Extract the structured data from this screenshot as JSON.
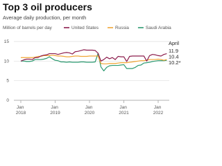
{
  "chart_data": {
    "type": "line",
    "title": "Top 3 oil producers",
    "subtitle": "Average daily production, per month",
    "y_label": "Million of barrels per day",
    "annotation": "April",
    "categories": [
      "Jan 2018",
      null,
      null,
      null,
      null,
      null,
      null,
      null,
      null,
      null,
      null,
      null,
      "Jan 2019",
      null,
      null,
      null,
      null,
      null,
      null,
      null,
      null,
      null,
      null,
      null,
      "Jan 2020",
      null,
      null,
      null,
      null,
      null,
      null,
      null,
      null,
      null,
      null,
      null,
      "Jan 2021",
      null,
      null,
      null,
      null,
      null,
      null,
      null,
      null,
      null,
      null,
      null,
      "Jan 2022",
      null,
      null,
      null
    ],
    "ylim": [
      0,
      15
    ],
    "yticks": [
      0,
      5,
      10,
      15
    ],
    "grid": true,
    "series": [
      {
        "name": "United States",
        "color": "#8c1c4c",
        "last_label": "11.9",
        "values": [
          10.0,
          10.3,
          10.5,
          10.5,
          10.4,
          10.9,
          10.9,
          11.3,
          11.5,
          11.6,
          11.9,
          11.9,
          11.9,
          11.7,
          11.9,
          12.1,
          12.2,
          12.1,
          11.8,
          12.4,
          12.5,
          12.7,
          12.9,
          12.8,
          12.8,
          12.8,
          12.7,
          12.0,
          10.0,
          10.4,
          11.0,
          10.6,
          10.9,
          10.4,
          11.2,
          11.1,
          11.1,
          9.9,
          11.2,
          11.3,
          11.3,
          11.3,
          11.3,
          11.3,
          10.0,
          11.4,
          11.7,
          11.6,
          11.4,
          11.3,
          11.7,
          11.9
        ]
      },
      {
        "name": "Russia",
        "color": "#f0a534",
        "last_label": "10.4",
        "values": [
          10.9,
          10.9,
          10.9,
          10.9,
          10.9,
          11.0,
          11.2,
          11.2,
          11.4,
          11.4,
          11.4,
          11.5,
          11.4,
          11.3,
          11.3,
          11.2,
          11.1,
          11.1,
          11.2,
          11.3,
          11.3,
          11.2,
          11.2,
          11.2,
          11.3,
          11.3,
          11.3,
          11.3,
          9.4,
          9.3,
          9.3,
          9.4,
          9.4,
          9.4,
          9.5,
          9.6,
          9.6,
          9.6,
          9.7,
          9.8,
          9.9,
          10.0,
          10.1,
          10.1,
          10.2,
          10.4,
          10.4,
          10.4,
          10.5,
          10.4,
          10.2,
          10.4
        ]
      },
      {
        "name": "Saudi Arabia",
        "color": "#2b9a70",
        "last_label": "10.2*",
        "values": [
          10.0,
          10.0,
          9.9,
          9.9,
          10.0,
          10.4,
          10.4,
          10.4,
          10.5,
          10.7,
          11.1,
          10.6,
          10.2,
          10.1,
          9.8,
          9.8,
          9.7,
          9.8,
          9.7,
          9.7,
          9.7,
          9.8,
          9.8,
          9.7,
          9.7,
          9.7,
          9.8,
          12.0,
          8.5,
          7.5,
          8.4,
          8.8,
          8.9,
          8.9,
          8.9,
          9.0,
          9.1,
          8.1,
          8.1,
          8.1,
          8.4,
          8.9,
          9.0,
          9.5,
          9.6,
          9.7,
          9.9,
          10.0,
          10.1,
          10.1,
          10.1,
          10.2
        ]
      }
    ]
  }
}
